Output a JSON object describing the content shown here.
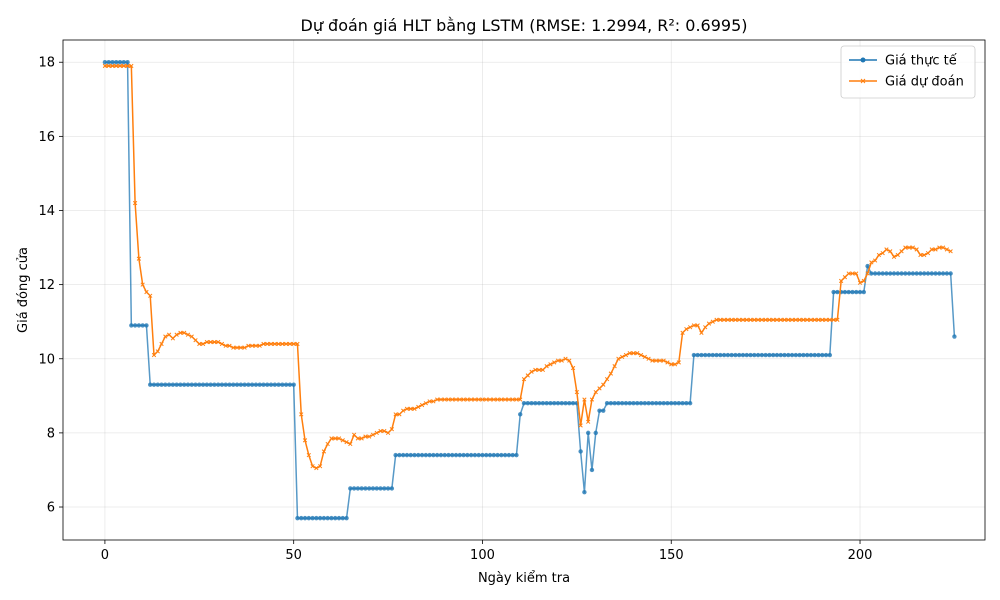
{
  "chart_data": {
    "type": "line",
    "title": "Dự đoán giá HLT bằng LSTM (RMSE: 1.2994, R²: 0.6995)",
    "xlabel": "Ngày kiểm tra",
    "ylabel": "Giá đóng cửa",
    "xlim": [
      -11.1,
      233.1
    ],
    "ylim": [
      5.11,
      18.6
    ],
    "xticks": [
      0,
      50,
      100,
      150,
      200
    ],
    "yticks": [
      6,
      8,
      10,
      12,
      14,
      16,
      18
    ],
    "grid": true,
    "legend_position": "top-right",
    "series": [
      {
        "name": "Giá thực tế",
        "color": "#1f77b4",
        "marker": "circle",
        "values": [
          18,
          18,
          18,
          18,
          18,
          18,
          18,
          10.9,
          10.9,
          10.9,
          10.9,
          10.9,
          9.3,
          9.3,
          9.3,
          9.3,
          9.3,
          9.3,
          9.3,
          9.3,
          9.3,
          9.3,
          9.3,
          9.3,
          9.3,
          9.3,
          9.3,
          9.3,
          9.3,
          9.3,
          9.3,
          9.3,
          9.3,
          9.3,
          9.3,
          9.3,
          9.3,
          9.3,
          9.3,
          9.3,
          9.3,
          9.3,
          9.3,
          9.3,
          9.3,
          9.3,
          9.3,
          9.3,
          9.3,
          9.3,
          9.3,
          5.7,
          5.7,
          5.7,
          5.7,
          5.7,
          5.7,
          5.7,
          5.7,
          5.7,
          5.7,
          5.7,
          5.7,
          5.7,
          5.7,
          6.5,
          6.5,
          6.5,
          6.5,
          6.5,
          6.5,
          6.5,
          6.5,
          6.5,
          6.5,
          6.5,
          6.5,
          7.4,
          7.4,
          7.4,
          7.4,
          7.4,
          7.4,
          7.4,
          7.4,
          7.4,
          7.4,
          7.4,
          7.4,
          7.4,
          7.4,
          7.4,
          7.4,
          7.4,
          7.4,
          7.4,
          7.4,
          7.4,
          7.4,
          7.4,
          7.4,
          7.4,
          7.4,
          7.4,
          7.4,
          7.4,
          7.4,
          7.4,
          7.4,
          7.4,
          8.5,
          8.8,
          8.8,
          8.8,
          8.8,
          8.8,
          8.8,
          8.8,
          8.8,
          8.8,
          8.8,
          8.8,
          8.8,
          8.8,
          8.8,
          8.8,
          7.5,
          6.4,
          8.0,
          7.0,
          8.0,
          8.6,
          8.6,
          8.8,
          8.8,
          8.8,
          8.8,
          8.8,
          8.8,
          8.8,
          8.8,
          8.8,
          8.8,
          8.8,
          8.8,
          8.8,
          8.8,
          8.8,
          8.8,
          8.8,
          8.8,
          8.8,
          8.8,
          8.8,
          8.8,
          8.8,
          10.1,
          10.1,
          10.1,
          10.1,
          10.1,
          10.1,
          10.1,
          10.1,
          10.1,
          10.1,
          10.1,
          10.1,
          10.1,
          10.1,
          10.1,
          10.1,
          10.1,
          10.1,
          10.1,
          10.1,
          10.1,
          10.1,
          10.1,
          10.1,
          10.1,
          10.1,
          10.1,
          10.1,
          10.1,
          10.1,
          10.1,
          10.1,
          10.1,
          10.1,
          10.1,
          10.1,
          10.1,
          11.8,
          11.8,
          11.8,
          11.8,
          11.8,
          11.8,
          11.8,
          11.8,
          11.8,
          12.5,
          12.3,
          12.3,
          12.3,
          12.3,
          12.3,
          12.3,
          12.3,
          12.3,
          12.3,
          12.3,
          12.3,
          12.3,
          12.3,
          12.3,
          12.3,
          12.3,
          12.3,
          12.3,
          12.3,
          12.3,
          12.3,
          12.3,
          10.6
        ]
      },
      {
        "name": "Giá dự đoán",
        "color": "#ff7f0e",
        "marker": "x",
        "values": [
          17.9,
          17.9,
          17.9,
          17.9,
          17.9,
          17.9,
          17.9,
          17.9,
          14.2,
          12.7,
          12.0,
          11.8,
          11.7,
          10.1,
          10.2,
          10.4,
          10.6,
          10.65,
          10.55,
          10.65,
          10.7,
          10.7,
          10.65,
          10.6,
          10.5,
          10.4,
          10.4,
          10.45,
          10.45,
          10.45,
          10.45,
          10.4,
          10.35,
          10.35,
          10.3,
          10.3,
          10.3,
          10.3,
          10.35,
          10.35,
          10.35,
          10.35,
          10.4,
          10.4,
          10.4,
          10.4,
          10.4,
          10.4,
          10.4,
          10.4,
          10.4,
          10.4,
          8.5,
          7.8,
          7.4,
          7.1,
          7.05,
          7.1,
          7.5,
          7.7,
          7.85,
          7.85,
          7.85,
          7.8,
          7.75,
          7.7,
          7.95,
          7.85,
          7.85,
          7.9,
          7.9,
          7.95,
          8.0,
          8.05,
          8.05,
          8.0,
          8.1,
          8.5,
          8.5,
          8.6,
          8.65,
          8.65,
          8.65,
          8.7,
          8.75,
          8.8,
          8.85,
          8.85,
          8.9,
          8.9,
          8.9,
          8.9,
          8.9,
          8.9,
          8.9,
          8.9,
          8.9,
          8.9,
          8.9,
          8.9,
          8.9,
          8.9,
          8.9,
          8.9,
          8.9,
          8.9,
          8.9,
          8.9,
          8.9,
          8.9,
          8.9,
          9.45,
          9.55,
          9.65,
          9.7,
          9.7,
          9.7,
          9.8,
          9.85,
          9.9,
          9.95,
          9.95,
          10.0,
          9.95,
          9.75,
          9.1,
          8.2,
          8.9,
          8.3,
          8.9,
          9.1,
          9.2,
          9.3,
          9.45,
          9.6,
          9.8,
          10.0,
          10.05,
          10.1,
          10.15,
          10.15,
          10.15,
          10.1,
          10.05,
          10.0,
          9.95,
          9.95,
          9.95,
          9.95,
          9.9,
          9.85,
          9.85,
          9.9,
          10.7,
          10.8,
          10.85,
          10.9,
          10.9,
          10.7,
          10.85,
          10.95,
          11.0,
          11.05,
          11.05,
          11.05,
          11.05,
          11.05,
          11.05,
          11.05,
          11.05,
          11.05,
          11.05,
          11.05,
          11.05,
          11.05,
          11.05,
          11.05,
          11.05,
          11.05,
          11.05,
          11.05,
          11.05,
          11.05,
          11.05,
          11.05,
          11.05,
          11.05,
          11.05,
          11.05,
          11.05,
          11.05,
          11.05,
          11.05,
          11.05,
          11.05,
          12.1,
          12.2,
          12.3,
          12.3,
          12.3,
          12.05,
          12.1,
          12.3,
          12.6,
          12.65,
          12.8,
          12.85,
          12.95,
          12.9,
          12.75,
          12.8,
          12.9,
          13.0,
          13.0,
          13.0,
          12.95,
          12.8,
          12.8,
          12.85,
          12.95,
          12.95,
          13.0,
          13.0,
          12.95,
          12.9
        ]
      }
    ]
  }
}
